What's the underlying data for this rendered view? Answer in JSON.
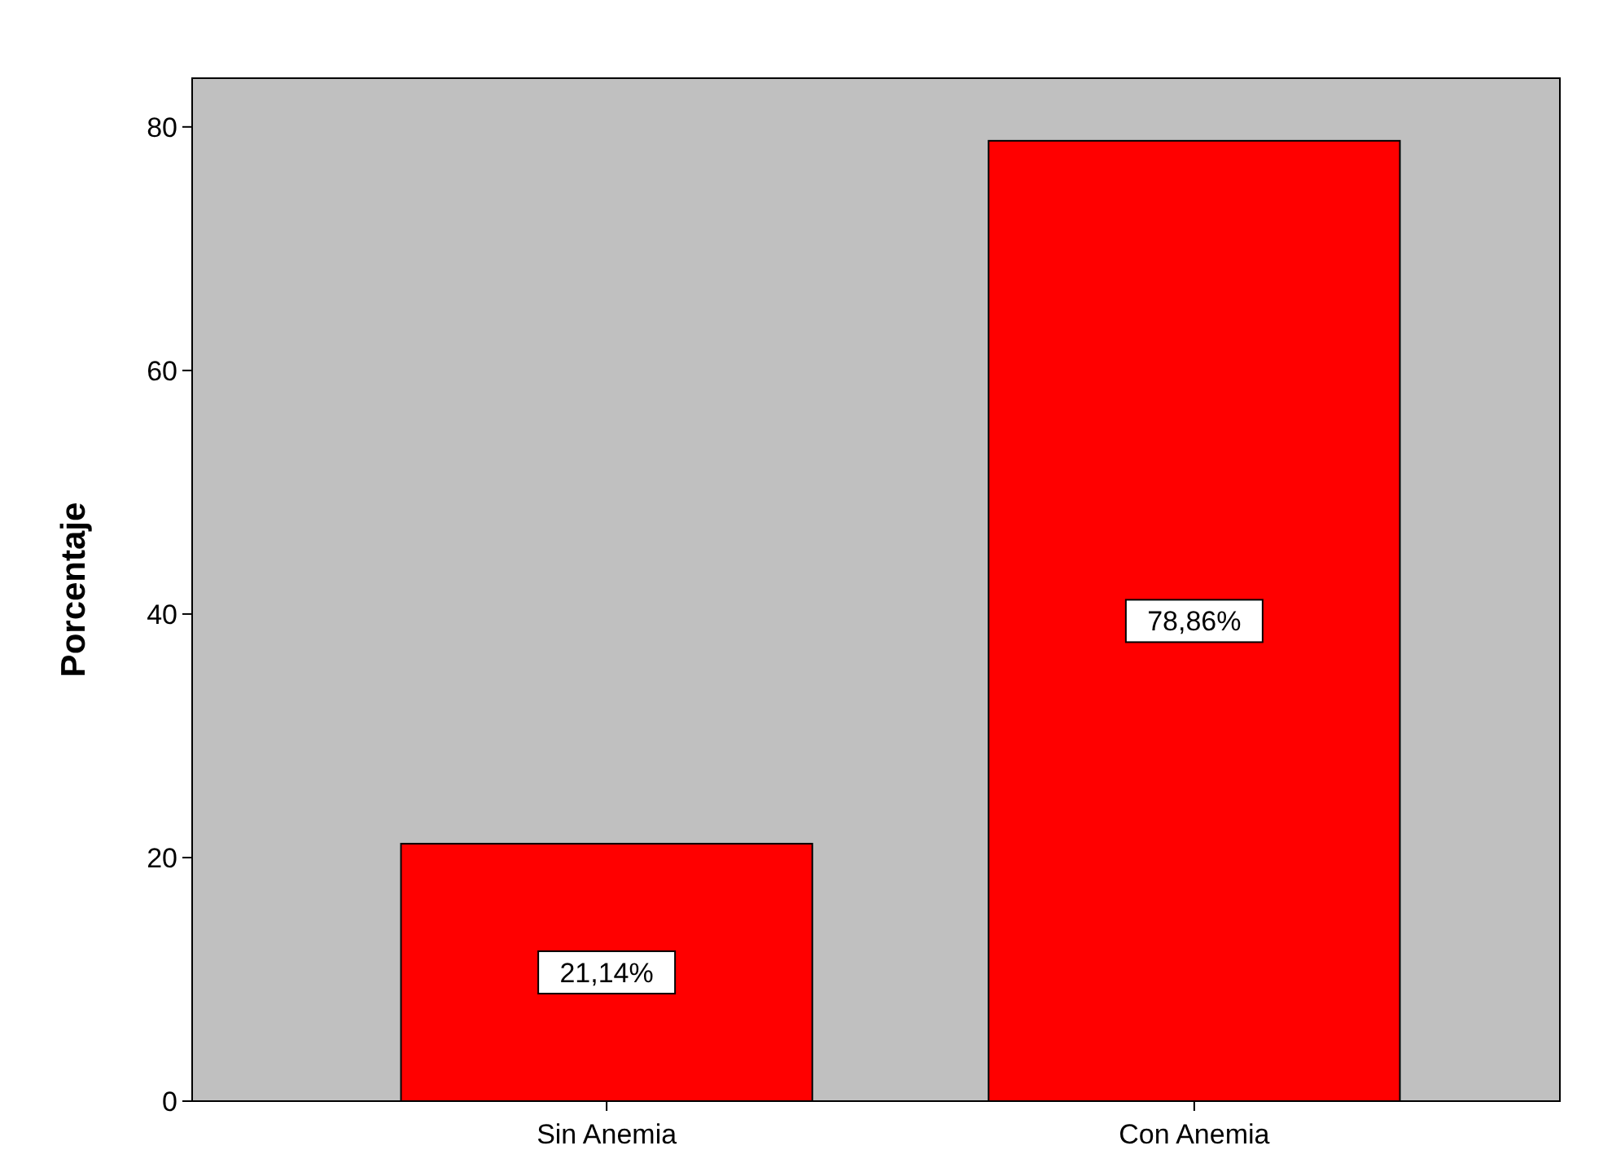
{
  "chart_data": {
    "type": "bar",
    "ylabel": "Porcentaje",
    "categories": [
      "Sin Anemia",
      "Con Anemia"
    ],
    "values": [
      21.14,
      78.86
    ],
    "value_labels": [
      "21,14%",
      "78,86%"
    ],
    "color": "#ff0000",
    "ylim": [
      0,
      84
    ],
    "yticks": [
      0,
      20,
      40,
      60,
      80
    ],
    "grid": false
  }
}
